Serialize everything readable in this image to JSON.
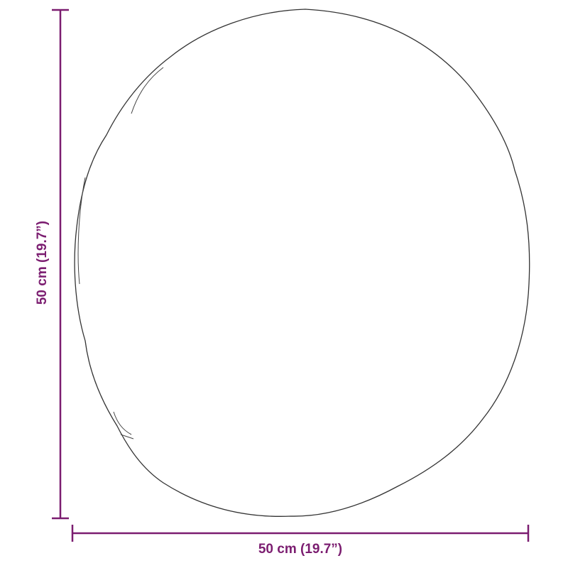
{
  "colors": {
    "dimension": "#7b1d70",
    "outline": "#333333"
  },
  "dimensions": {
    "width_label": "50 cm (19.7”)",
    "height_label": "50 cm (19.7”)"
  }
}
